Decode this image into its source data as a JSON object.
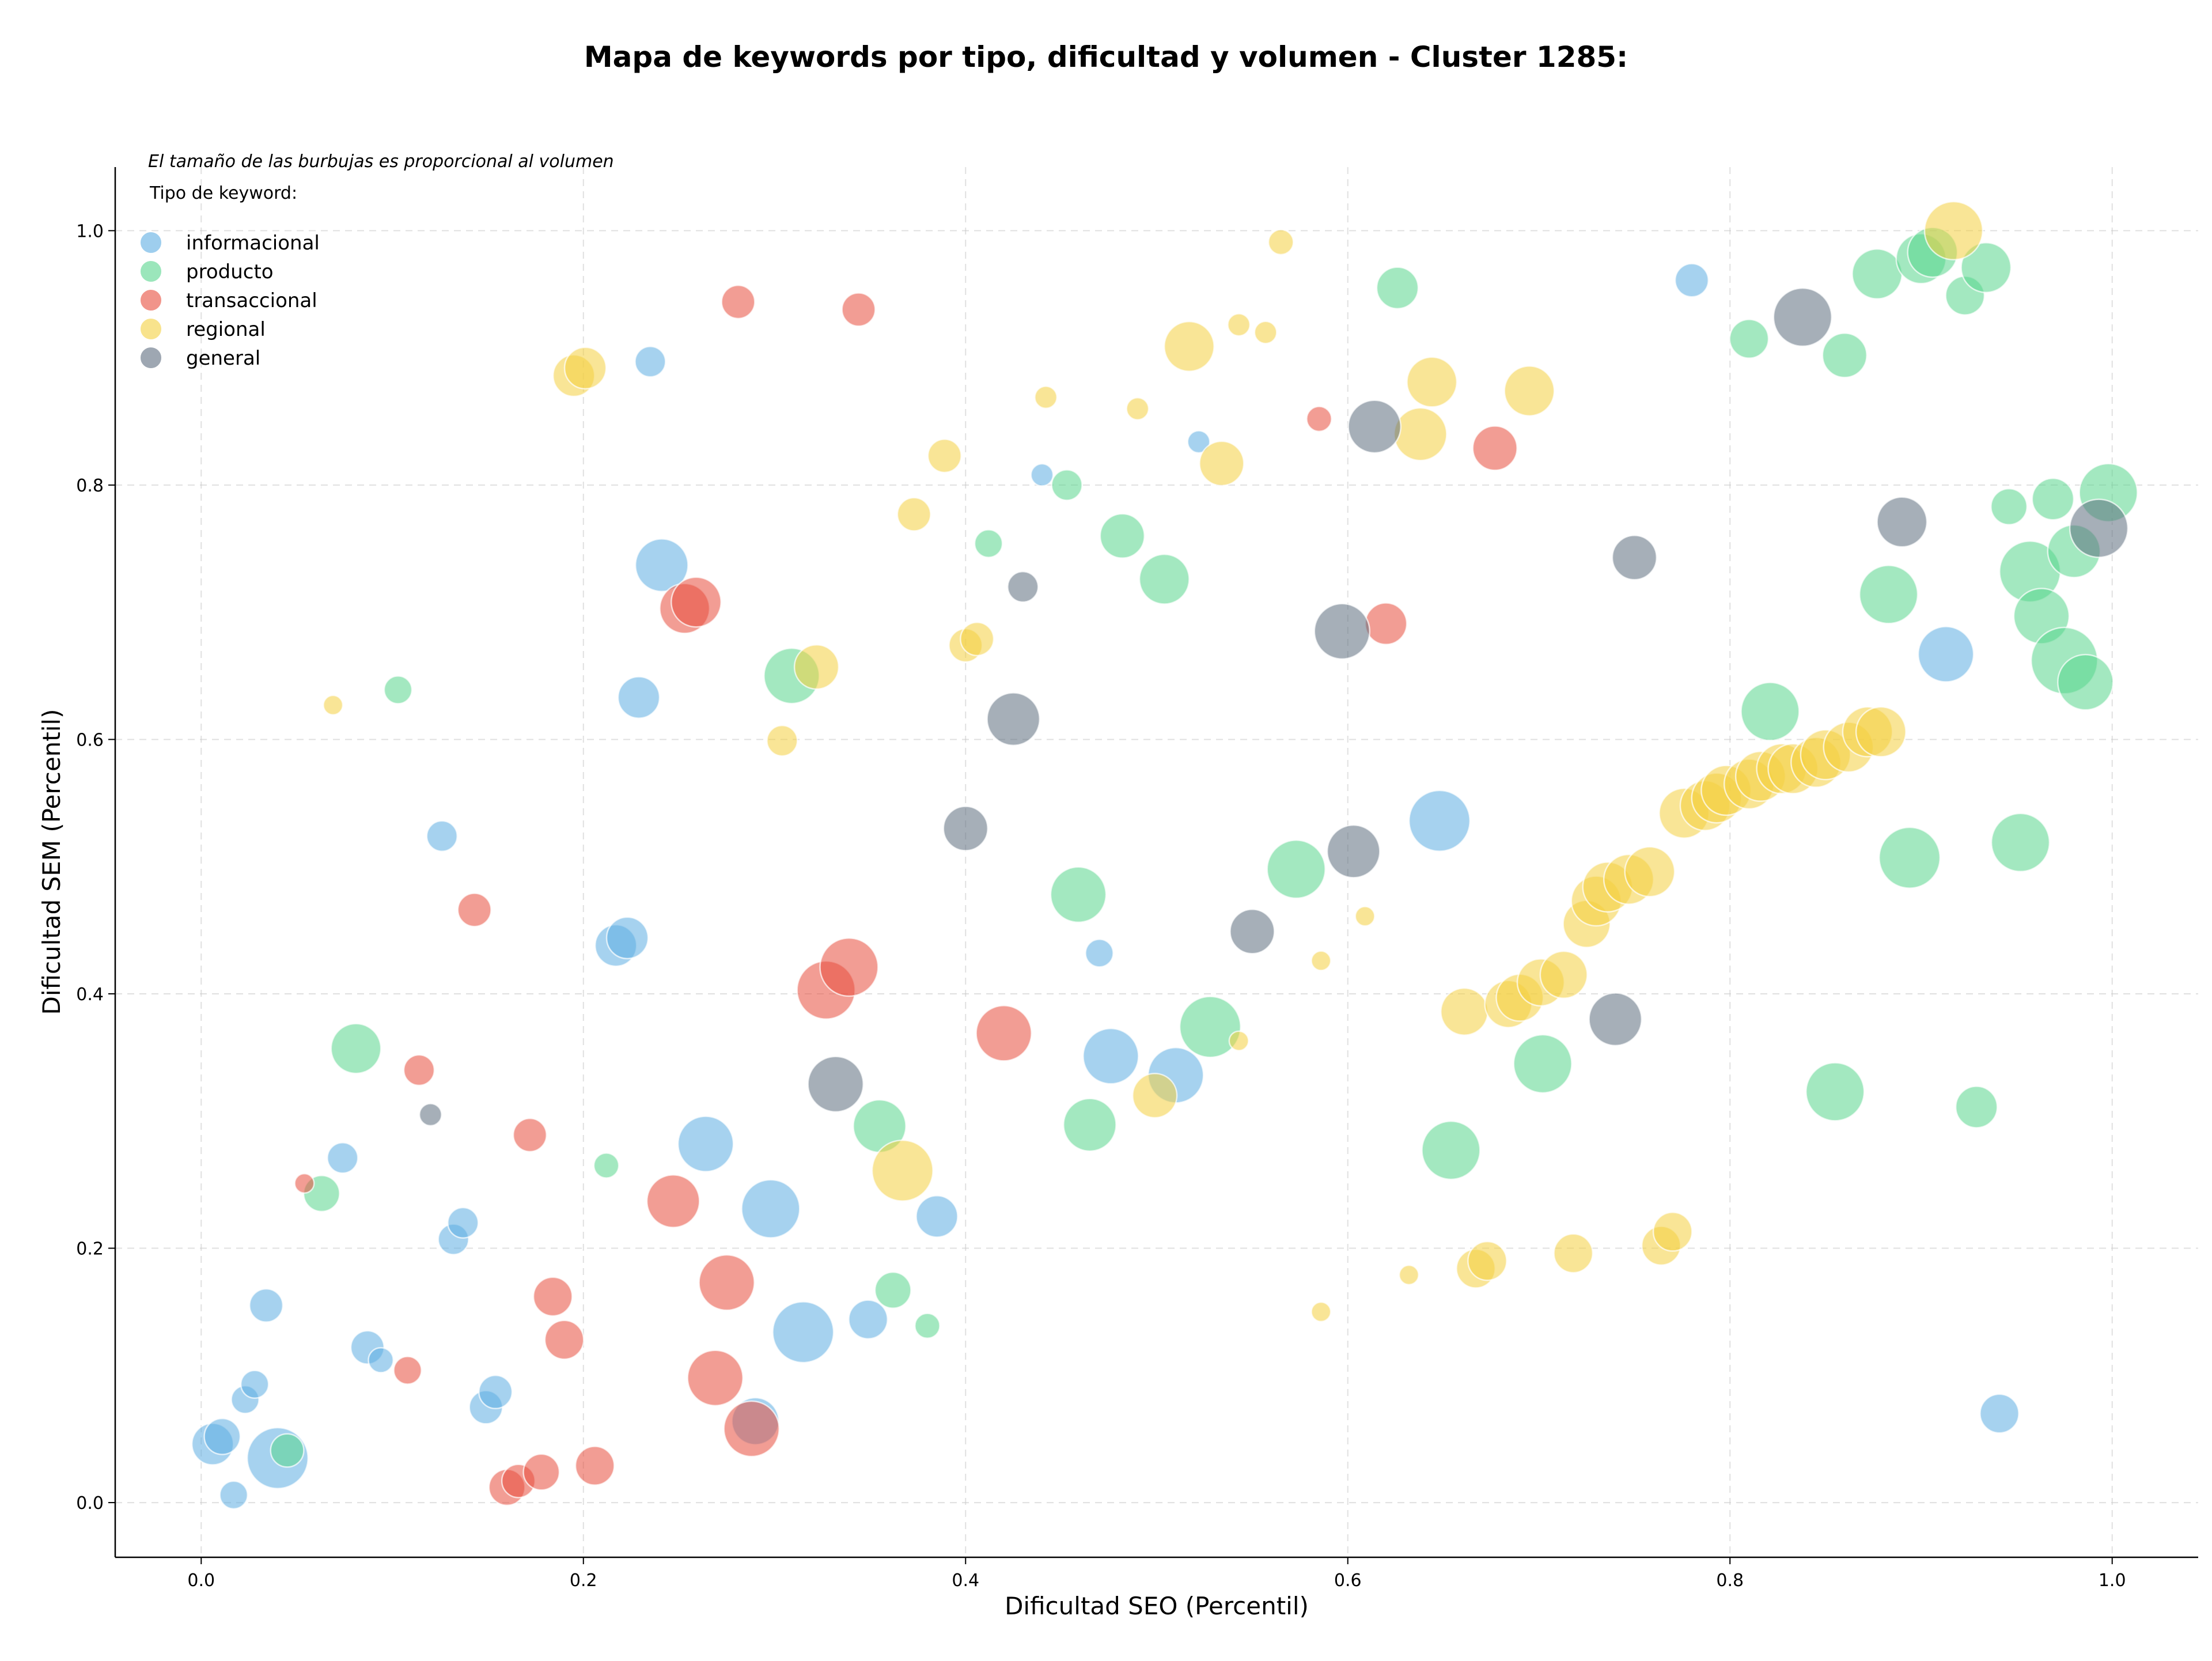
{
  "chart_data": {
    "type": "scatter",
    "title": "Mapa de keywords por tipo, dificultad y volumen - Cluster 1285:",
    "xlabel": "Dificultad SEO (Percentil)",
    "ylabel": "Dificultad SEM (Percentil)",
    "annotation": "El tamaño de las burbujas es proporcional al volumen",
    "legend_title": "Tipo de keyword:",
    "legend_placement": "top-left",
    "xlim": [
      -0.045,
      1.045
    ],
    "ylim": [
      -0.043,
      1.05
    ],
    "x_ticks": [
      "0.0",
      "0.2",
      "0.4",
      "0.6",
      "0.8",
      "1.0"
    ],
    "y_ticks": [
      "0.0",
      "0.2",
      "0.4",
      "0.6",
      "0.8",
      "1.0"
    ],
    "grid": true,
    "size_encoding": "volumen",
    "series": [
      {
        "name": "informacional",
        "color": "#5dade2",
        "points": [
          [
            0.006,
            0.046,
            1.5
          ],
          [
            0.011,
            0.052,
            1.3
          ],
          [
            0.017,
            0.006,
            1
          ],
          [
            0.023,
            0.081,
            1
          ],
          [
            0.028,
            0.093,
            1
          ],
          [
            0.034,
            0.155,
            1.2
          ],
          [
            0.04,
            0.035,
            2.2
          ],
          [
            0.074,
            0.271,
            1.1
          ],
          [
            0.087,
            0.122,
            1.2
          ],
          [
            0.094,
            0.112,
            0.9
          ],
          [
            0.132,
            0.207,
            1.1
          ],
          [
            0.137,
            0.22,
            1.1
          ],
          [
            0.149,
            0.075,
            1.2
          ],
          [
            0.154,
            0.087,
            1.2
          ],
          [
            0.126,
            0.524,
            1.1
          ],
          [
            0.217,
            0.438,
            1.5
          ],
          [
            0.223,
            0.444,
            1.5
          ],
          [
            0.229,
            0.633,
            1.5
          ],
          [
            0.235,
            0.897,
            1.1
          ],
          [
            0.241,
            0.737,
            1.9
          ],
          [
            0.264,
            0.282,
            2.0
          ],
          [
            0.29,
            0.064,
            1.7
          ],
          [
            0.298,
            0.231,
            2.1
          ],
          [
            0.315,
            0.134,
            2.2
          ],
          [
            0.349,
            0.144,
            1.4
          ],
          [
            0.385,
            0.225,
            1.5
          ],
          [
            0.44,
            0.808,
            0.8
          ],
          [
            0.47,
            0.432,
            1.0
          ],
          [
            0.476,
            0.351,
            2.0
          ],
          [
            0.51,
            0.336,
            2.0
          ],
          [
            0.522,
            0.834,
            0.8
          ],
          [
            0.648,
            0.536,
            2.2
          ],
          [
            0.78,
            0.961,
            1.2
          ],
          [
            0.913,
            0.667,
            2.0
          ],
          [
            0.941,
            0.07,
            1.4
          ]
        ]
      },
      {
        "name": "producto",
        "color": "#58d68d",
        "points": [
          [
            0.045,
            0.041,
            1.2
          ],
          [
            0.063,
            0.243,
            1.3
          ],
          [
            0.081,
            0.357,
            1.8
          ],
          [
            0.103,
            0.639,
            1.0
          ],
          [
            0.212,
            0.265,
            0.9
          ],
          [
            0.309,
            0.65,
            2.0
          ],
          [
            0.355,
            0.296,
            1.9
          ],
          [
            0.362,
            0.167,
            1.3
          ],
          [
            0.38,
            0.139,
            0.9
          ],
          [
            0.412,
            0.754,
            1.0
          ],
          [
            0.453,
            0.8,
            1.1
          ],
          [
            0.459,
            0.478,
            2.0
          ],
          [
            0.465,
            0.297,
            1.9
          ],
          [
            0.482,
            0.76,
            1.6
          ],
          [
            0.504,
            0.726,
            1.8
          ],
          [
            0.528,
            0.374,
            2.2
          ],
          [
            0.573,
            0.498,
            2.1
          ],
          [
            0.626,
            0.955,
            1.5
          ],
          [
            0.654,
            0.277,
            2.1
          ],
          [
            0.702,
            0.345,
            2.1
          ],
          [
            0.81,
            0.915,
            1.4
          ],
          [
            0.821,
            0.622,
            2.1
          ],
          [
            0.86,
            0.902,
            1.6
          ],
          [
            0.855,
            0.323,
            2.1
          ],
          [
            0.877,
            0.966,
            1.8
          ],
          [
            0.883,
            0.714,
            2.1
          ],
          [
            0.894,
            0.507,
            2.2
          ],
          [
            0.9,
            0.978,
            1.8
          ],
          [
            0.906,
            0.983,
            1.8
          ],
          [
            0.923,
            0.949,
            1.4
          ],
          [
            0.929,
            0.311,
            1.5
          ],
          [
            0.934,
            0.971,
            1.8
          ],
          [
            0.946,
            0.783,
            1.3
          ],
          [
            0.952,
            0.519,
            2.1
          ],
          [
            0.957,
            0.732,
            2.2
          ],
          [
            0.963,
            0.697,
            2.0
          ],
          [
            0.969,
            0.789,
            1.5
          ],
          [
            0.975,
            0.662,
            2.4
          ],
          [
            0.98,
            0.748,
            1.9
          ],
          [
            0.986,
            0.645,
            2.0
          ],
          [
            0.998,
            0.794,
            2.1
          ]
        ]
      },
      {
        "name": "transaccional",
        "color": "#e74c3c",
        "points": [
          [
            0.054,
            0.251,
            0.7
          ],
          [
            0.108,
            0.104,
            1.0
          ],
          [
            0.114,
            0.34,
            1.1
          ],
          [
            0.143,
            0.466,
            1.2
          ],
          [
            0.16,
            0.012,
            1.3
          ],
          [
            0.166,
            0.017,
            1.2
          ],
          [
            0.172,
            0.289,
            1.2
          ],
          [
            0.178,
            0.024,
            1.3
          ],
          [
            0.184,
            0.162,
            1.4
          ],
          [
            0.19,
            0.128,
            1.4
          ],
          [
            0.206,
            0.029,
            1.4
          ],
          [
            0.247,
            0.237,
            1.9
          ],
          [
            0.253,
            0.703,
            1.8
          ],
          [
            0.259,
            0.708,
            1.8
          ],
          [
            0.269,
            0.098,
            2.0
          ],
          [
            0.275,
            0.173,
            2.0
          ],
          [
            0.281,
            0.944,
            1.2
          ],
          [
            0.288,
            0.058,
            2.0
          ],
          [
            0.327,
            0.403,
            2.1
          ],
          [
            0.339,
            0.421,
            2.1
          ],
          [
            0.344,
            0.938,
            1.2
          ],
          [
            0.42,
            0.369,
            2.0
          ],
          [
            0.585,
            0.852,
            0.9
          ],
          [
            0.62,
            0.691,
            1.5
          ],
          [
            0.677,
            0.829,
            1.6
          ]
        ]
      },
      {
        "name": "regional",
        "color": "#f4d03f",
        "points": [
          [
            0.069,
            0.627,
            0.7
          ],
          [
            0.195,
            0.886,
            1.5
          ],
          [
            0.201,
            0.892,
            1.5
          ],
          [
            0.304,
            0.599,
            1.1
          ],
          [
            0.322,
            0.657,
            1.6
          ],
          [
            0.367,
            0.261,
            2.2
          ],
          [
            0.373,
            0.777,
            1.2
          ],
          [
            0.389,
            0.823,
            1.2
          ],
          [
            0.4,
            0.674,
            1.2
          ],
          [
            0.406,
            0.679,
            1.2
          ],
          [
            0.442,
            0.869,
            0.8
          ],
          [
            0.49,
            0.86,
            0.8
          ],
          [
            0.499,
            0.32,
            1.6
          ],
          [
            0.517,
            0.909,
            1.8
          ],
          [
            0.534,
            0.817,
            1.6
          ],
          [
            0.543,
            0.926,
            0.8
          ],
          [
            0.543,
            0.363,
            0.7
          ],
          [
            0.557,
            0.92,
            0.8
          ],
          [
            0.565,
            0.991,
            0.9
          ],
          [
            0.586,
            0.426,
            0.7
          ],
          [
            0.586,
            0.15,
            0.7
          ],
          [
            0.609,
            0.461,
            0.7
          ],
          [
            0.632,
            0.179,
            0.7
          ],
          [
            0.638,
            0.84,
            1.9
          ],
          [
            0.644,
            0.881,
            1.8
          ],
          [
            0.661,
            0.386,
            1.7
          ],
          [
            0.667,
            0.184,
            1.4
          ],
          [
            0.673,
            0.19,
            1.4
          ],
          [
            0.684,
            0.392,
            1.7
          ],
          [
            0.69,
            0.397,
            1.7
          ],
          [
            0.695,
            0.874,
            1.8
          ],
          [
            0.701,
            0.409,
            1.7
          ],
          [
            0.713,
            0.415,
            1.7
          ],
          [
            0.718,
            0.196,
            1.4
          ],
          [
            0.725,
            0.455,
            1.7
          ],
          [
            0.73,
            0.473,
            1.8
          ],
          [
            0.736,
            0.484,
            1.8
          ],
          [
            0.747,
            0.49,
            1.8
          ],
          [
            0.758,
            0.496,
            1.8
          ],
          [
            0.764,
            0.202,
            1.4
          ],
          [
            0.77,
            0.213,
            1.4
          ],
          [
            0.776,
            0.542,
            1.8
          ],
          [
            0.787,
            0.548,
            1.8
          ],
          [
            0.793,
            0.554,
            1.8
          ],
          [
            0.798,
            0.56,
            1.8
          ],
          [
            0.81,
            0.565,
            1.8
          ],
          [
            0.816,
            0.571,
            1.8
          ],
          [
            0.827,
            0.577,
            1.8
          ],
          [
            0.833,
            0.577,
            1.8
          ],
          [
            0.845,
            0.582,
            1.8
          ],
          [
            0.85,
            0.588,
            1.8
          ],
          [
            0.862,
            0.594,
            1.8
          ],
          [
            0.872,
            0.606,
            1.8
          ],
          [
            0.879,
            0.606,
            1.8
          ],
          [
            0.917,
            1.0,
            2.1
          ]
        ]
      },
      {
        "name": "general",
        "color": "#5d6d7e",
        "points": [
          [
            0.12,
            0.305,
            0.8
          ],
          [
            0.332,
            0.329,
            2.0
          ],
          [
            0.4,
            0.53,
            1.6
          ],
          [
            0.425,
            0.616,
            1.9
          ],
          [
            0.43,
            0.72,
            1.1
          ],
          [
            0.55,
            0.449,
            1.6
          ],
          [
            0.597,
            0.685,
            2.0
          ],
          [
            0.603,
            0.512,
            1.9
          ],
          [
            0.614,
            0.846,
            1.9
          ],
          [
            0.74,
            0.38,
            1.9
          ],
          [
            0.75,
            0.743,
            1.6
          ],
          [
            0.838,
            0.932,
            2.1
          ],
          [
            0.89,
            0.771,
            1.8
          ],
          [
            0.993,
            0.766,
            2.1
          ]
        ]
      }
    ]
  }
}
